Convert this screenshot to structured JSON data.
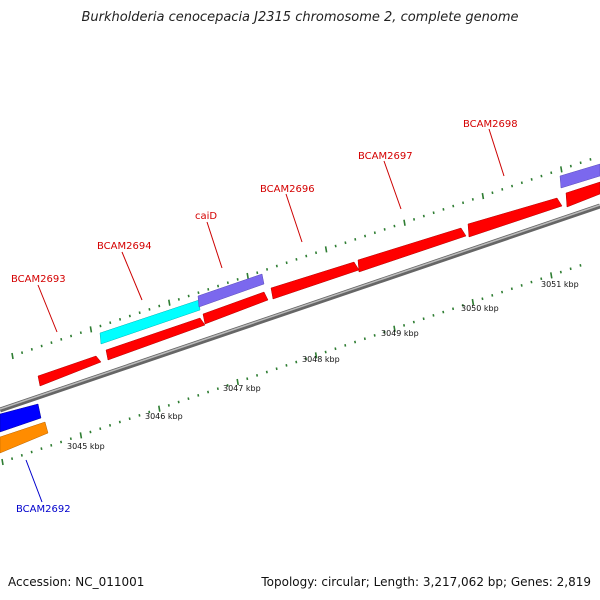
{
  "title": "Burkholderia cenocepacia J2315 chromosome 2, complete genome",
  "footer": {
    "accession": "Accession: NC_011001",
    "summary": "Topology: circular; Length: 3,217,062 bp; Genes: 2,819"
  },
  "colors": {
    "cds": "#ff0000",
    "cyan_feature": "#00ffff",
    "purple_feature": "#7b68ee",
    "blue_feature": "#0000ff",
    "orange_feature": "#ff8c00",
    "backbone": "#808080",
    "ticks": "#2e7d32",
    "label_red": "#d40000",
    "label_blue": "#0000cc"
  },
  "scale_labels": [
    "3045 kbp",
    "3046 kbp",
    "3047 kbp",
    "3048 kbp",
    "3049 kbp",
    "3050 kbp",
    "3051 kbp"
  ],
  "gene_labels": [
    {
      "id": "BCAM2692",
      "color": "blue"
    },
    {
      "id": "BCAM2693",
      "color": "red"
    },
    {
      "id": "BCAM2694",
      "color": "red"
    },
    {
      "id": "caiD",
      "color": "red"
    },
    {
      "id": "BCAM2696",
      "color": "red"
    },
    {
      "id": "BCAM2697",
      "color": "red"
    },
    {
      "id": "BCAM2698",
      "color": "red"
    }
  ]
}
